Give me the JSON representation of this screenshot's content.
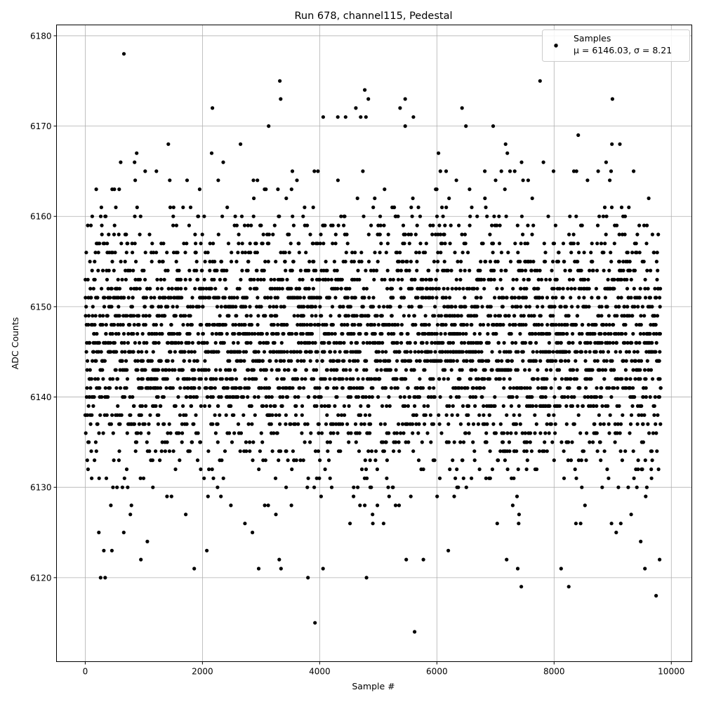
{
  "chart_data": {
    "type": "scatter",
    "title": "Run 678, channel115, Pedestal",
    "xlabel": "Sample #",
    "ylabel": "ADC Counts",
    "xlim": [
      -490,
      10350
    ],
    "ylim": [
      6110.7,
      6181.2
    ],
    "xticks": [
      0,
      2000,
      4000,
      6000,
      8000,
      10000
    ],
    "yticks": [
      6120,
      6130,
      6140,
      6150,
      6160,
      6170,
      6180
    ],
    "grid": true,
    "legend": {
      "placement": "top-right",
      "entries": [
        "Samples",
        "μ = 6146.03, σ = 8.21"
      ]
    },
    "marker_color": "#000000",
    "series": [
      {
        "name": "Samples",
        "mean": 6146.03,
        "sigma": 8.21,
        "sample_range": [
          0,
          9820
        ],
        "value_type": "integer",
        "notable_points": [
          [
            660,
            6178
          ],
          [
            8040,
            6179
          ],
          [
            3320,
            6175
          ],
          [
            7760,
            6175
          ],
          [
            4770,
            6174
          ],
          [
            4830,
            6173
          ],
          [
            5460,
            6173
          ],
          [
            2170,
            6172
          ],
          [
            6430,
            6172
          ],
          [
            4060,
            6171
          ],
          [
            4310,
            6171
          ],
          [
            4700,
            6171
          ],
          [
            4790,
            6171
          ],
          [
            5600,
            6171
          ],
          [
            6960,
            6170
          ],
          [
            5460,
            6170
          ],
          [
            3130,
            6170
          ],
          [
            3920,
            6115
          ],
          [
            5620,
            6114
          ],
          [
            9740,
            6118
          ],
          [
            7440,
            6119
          ],
          [
            8250,
            6119
          ],
          [
            340,
            6120
          ],
          [
            3800,
            6120
          ],
          [
            4800,
            6120
          ],
          [
            1860,
            6121
          ],
          [
            3340,
            6121
          ],
          [
            7380,
            6121
          ],
          [
            8120,
            6121
          ],
          [
            9550,
            6121
          ],
          [
            950,
            6122
          ],
          [
            3310,
            6122
          ],
          [
            5770,
            6122
          ],
          [
            7190,
            6122
          ],
          [
            9800,
            6122
          ]
        ]
      }
    ]
  }
}
